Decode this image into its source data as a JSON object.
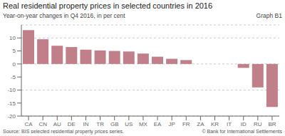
{
  "chart_data": {
    "type": "bar",
    "title": "Real residential property prices in selected countries in 2016",
    "subtitle": "Year-on-year changes in Q4 2016, in per cent",
    "annotations": [
      "Graph B1",
      "Source: BIS selected residential property prices series.",
      "© Bank for International Settlements"
    ],
    "categories": [
      "CA",
      "CN",
      "AU",
      "DE",
      "IN",
      "TR",
      "GB",
      "US",
      "MX",
      "EA",
      "JP",
      "FR",
      "ZA",
      "KR",
      "IT",
      "ID",
      "RU",
      "BR"
    ],
    "values": [
      13.0,
      9.5,
      7.0,
      6.5,
      5.5,
      5.2,
      5.0,
      4.8,
      4.0,
      2.8,
      2.0,
      1.5,
      0.0,
      0.0,
      0.0,
      -1.5,
      -9.0,
      -16.5
    ],
    "color": "#c17f8a",
    "ylim": [
      -20,
      15
    ],
    "yticks": [
      -20,
      -15,
      -10,
      -5,
      0,
      5,
      10
    ],
    "grid": true
  }
}
